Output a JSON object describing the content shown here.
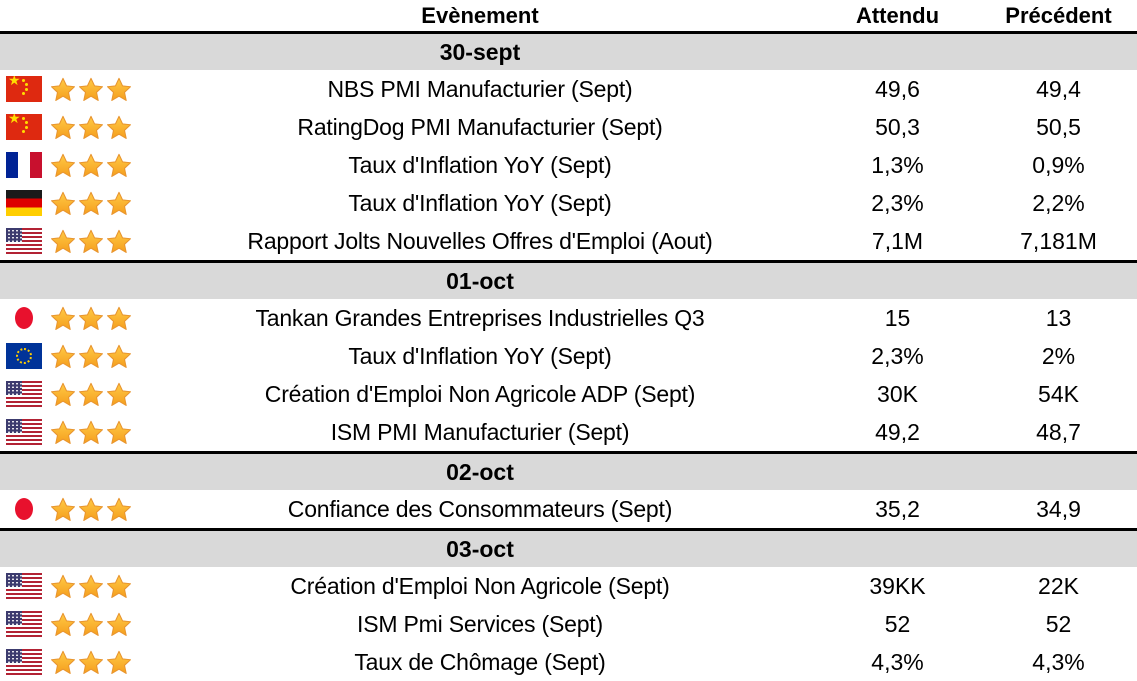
{
  "table": {
    "columns": {
      "event": "Evènement",
      "expected": "Attendu",
      "previous": "Précédent"
    },
    "sections": [
      {
        "date": "30-sept",
        "rows": [
          {
            "country": "china",
            "importance": 3,
            "event": "NBS PMI Manufacturier (Sept)",
            "expected": "49,6",
            "previous": "49,4"
          },
          {
            "country": "china",
            "importance": 3,
            "event": "RatingDog PMI Manufacturier (Sept)",
            "expected": "50,3",
            "previous": "50,5"
          },
          {
            "country": "france",
            "importance": 3,
            "event": "Taux d'Inflation YoY (Sept)",
            "expected": "1,3%",
            "previous": "0,9%"
          },
          {
            "country": "germany",
            "importance": 3,
            "event": "Taux d'Inflation YoY (Sept)",
            "expected": "2,3%",
            "previous": "2,2%"
          },
          {
            "country": "usa",
            "importance": 3,
            "event": "Rapport Jolts Nouvelles Offres d'Emploi (Aout)",
            "expected": "7,1M",
            "previous": "7,181M"
          }
        ]
      },
      {
        "date": "01-oct",
        "rows": [
          {
            "country": "japan",
            "importance": 3,
            "event": "Tankan Grandes Entreprises Industrielles Q3",
            "expected": "15",
            "previous": "13"
          },
          {
            "country": "eu",
            "importance": 3,
            "event": "Taux d'Inflation YoY (Sept)",
            "expected": "2,3%",
            "previous": "2%"
          },
          {
            "country": "usa",
            "importance": 3,
            "event": "Création d'Emploi Non Agricole ADP (Sept)",
            "expected": "30K",
            "previous": "54K"
          },
          {
            "country": "usa",
            "importance": 3,
            "event": "ISM PMI Manufacturier (Sept)",
            "expected": "49,2",
            "previous": "48,7"
          }
        ]
      },
      {
        "date": "02-oct",
        "rows": [
          {
            "country": "japan",
            "importance": 3,
            "event": "Confiance des Consommateurs (Sept)",
            "expected": "35,2",
            "previous": "34,9"
          }
        ]
      },
      {
        "date": "03-oct",
        "rows": [
          {
            "country": "usa",
            "importance": 3,
            "event": "Création d'Emploi Non Agricole (Sept)",
            "expected": "39KK",
            "previous": "22K"
          },
          {
            "country": "usa",
            "importance": 3,
            "event": "ISM Pmi Services (Sept)",
            "expected": "52",
            "previous": "52"
          },
          {
            "country": "usa",
            "importance": 3,
            "event": "Taux de Chômage (Sept)",
            "expected": "4,3%",
            "previous": "4,3%"
          }
        ]
      }
    ]
  },
  "colors": {
    "section_bg": "#d9d9d9",
    "divider": "#000000",
    "star_top": "#ffca45",
    "star_bottom": "#f59e1e",
    "star_stroke": "#e8952f"
  }
}
